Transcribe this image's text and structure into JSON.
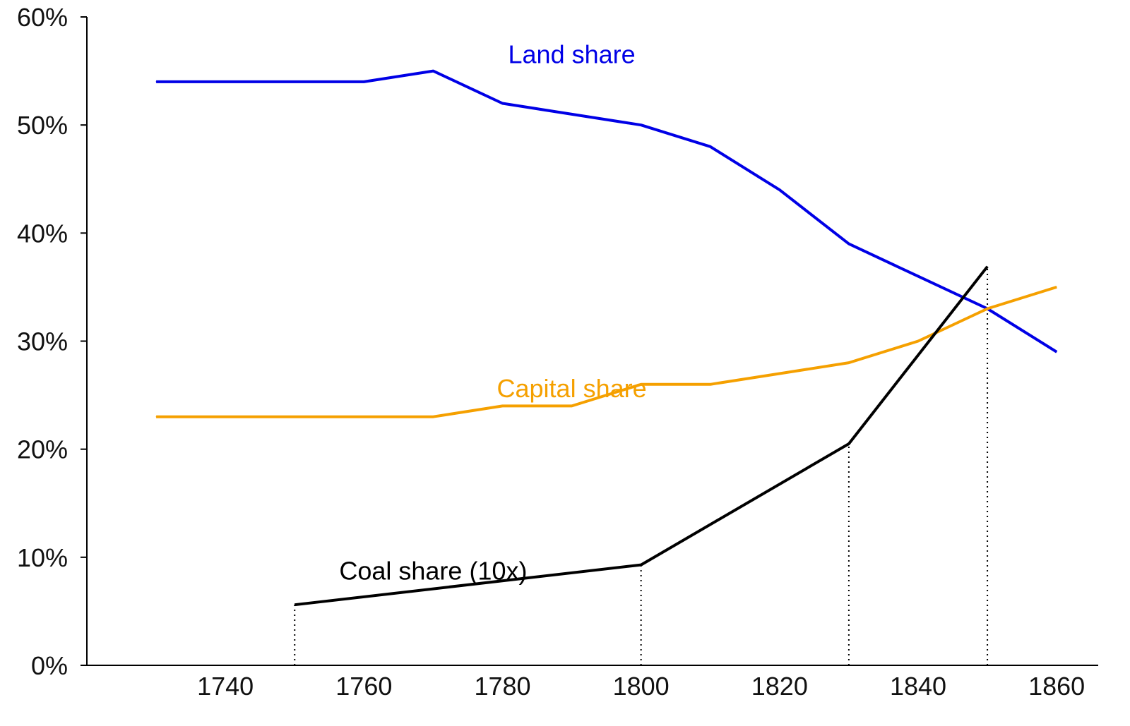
{
  "chart_data": {
    "type": "line",
    "title": "",
    "xlabel": "",
    "ylabel": "",
    "xlim": [
      1720,
      1866
    ],
    "ylim": [
      0,
      60
    ],
    "x_ticks": [
      1740,
      1760,
      1780,
      1800,
      1820,
      1840,
      1860
    ],
    "x_tick_labels": [
      "1740",
      "1760",
      "1780",
      "1800",
      "1820",
      "1840",
      "1860"
    ],
    "y_ticks": [
      0,
      10,
      20,
      30,
      40,
      50,
      60
    ],
    "y_tick_labels": [
      "0%",
      "10%",
      "20%",
      "30%",
      "40%",
      "50%",
      "60%"
    ],
    "grid": false,
    "series": [
      {
        "name": "Land share",
        "label": "Land share",
        "color": "#0000e6",
        "x": [
          1730,
          1740,
          1750,
          1760,
          1770,
          1780,
          1790,
          1800,
          1810,
          1820,
          1830,
          1840,
          1850,
          1860
        ],
        "values": [
          54,
          54,
          54,
          54,
          55,
          52,
          51,
          50,
          48,
          44,
          39,
          36,
          33,
          29
        ],
        "label_pos": [
          1790,
          56.5
        ]
      },
      {
        "name": "Capital share",
        "label": "Capital share",
        "color": "#f5a000",
        "x": [
          1730,
          1740,
          1750,
          1760,
          1770,
          1780,
          1790,
          1800,
          1810,
          1820,
          1830,
          1840,
          1850,
          1860
        ],
        "values": [
          23,
          23,
          23,
          23,
          23,
          24,
          24,
          26,
          26,
          27,
          28,
          30,
          33,
          35
        ],
        "label_pos": [
          1790,
          25.6
        ]
      },
      {
        "name": "Coal share (10x)",
        "label": "Coal share (10x)",
        "color": "#000000",
        "x": [
          1750,
          1800,
          1830,
          1850
        ],
        "values": [
          5.6,
          9.3,
          20.5,
          36.9
        ],
        "label_pos": [
          1770,
          8.7
        ]
      }
    ],
    "reference_lines": [
      {
        "x": 1750,
        "to_series": "Coal share (10x)",
        "style": "dotted"
      },
      {
        "x": 1800,
        "to_series": "Coal share (10x)",
        "style": "dotted"
      },
      {
        "x": 1830,
        "to_series": "Coal share (10x)",
        "style": "dotted"
      },
      {
        "x": 1850,
        "to_series": "Coal share (10x)",
        "style": "dotted"
      }
    ]
  }
}
